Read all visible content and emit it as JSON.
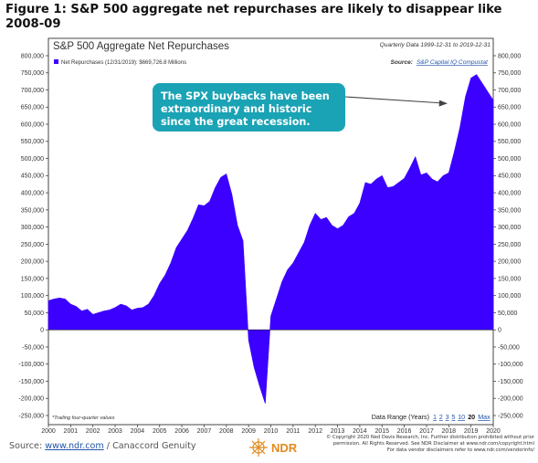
{
  "figure_title": "Figure 1: S&P 500 aggregate net repurchases are likely to disappear like 2008-09",
  "colors": {
    "fill": "#3b00ff",
    "callout": "#1aa3b5",
    "frame": "#444444",
    "link": "#2255aa"
  },
  "source": {
    "label": "Source:",
    "link": "www.ndr.com",
    "rest": "/ Canaccord Genuity"
  },
  "copyright_lines": [
    "© Copyright 2020 Ned Davis Research, Inc. Further distribution prohibited without prior",
    "permission. All Rights Reserved. See NDR Disclaimer at www.ndr.com/copyright.html",
    "For data vendor disclaimers refer to www.ndr.com/vendorinfo/"
  ],
  "logo_text": "NDR",
  "chart_data": {
    "type": "area",
    "title": "S&P 500 Aggregate Net Repurchases",
    "subtitle_right": "Quarterly Data 1999-12-31 to 2019-12-31",
    "legend": "Net Repurchases (12/31/2019): $669,726.8 Millions",
    "source_label": "Source:",
    "source_value": "S&P Capital IQ Compustat",
    "note": "*Trailing four-quarter values",
    "data_range_label": "Data Range (Years)",
    "data_range_options": [
      "1",
      "2",
      "3",
      "5",
      "10",
      "20",
      "Max"
    ],
    "data_range_selected": "20",
    "annotation": "The SPX buybacks have been extraordinary and historic since the great recession.",
    "ylim": [
      -250000,
      800000
    ],
    "y_ticks": [
      800000,
      750000,
      700000,
      650000,
      600000,
      550000,
      500000,
      450000,
      400000,
      350000,
      300000,
      250000,
      200000,
      150000,
      100000,
      50000,
      0,
      -50000,
      -100000,
      -150000,
      -200000,
      -250000
    ],
    "y_tick_labels": [
      "800,000",
      "750,000",
      "700,000",
      "650,000",
      "600,000",
      "550,000",
      "500,000",
      "450,000",
      "400,000",
      "350,000",
      "300,000",
      "250,000",
      "200,000",
      "150,000",
      "100,000",
      "50,000",
      "0",
      "-50,000",
      "-100,000",
      "-150,000",
      "-200,000",
      "-250,000"
    ],
    "xlim": [
      2000,
      2020
    ],
    "x_ticks": [
      "2000",
      "2001",
      "2002",
      "2003",
      "2004",
      "2005",
      "2006",
      "2007",
      "2008",
      "2009",
      "2010",
      "2011",
      "2012",
      "2013",
      "2014",
      "2015",
      "2016",
      "2017",
      "2018",
      "2019",
      "2020"
    ],
    "series": [
      {
        "x": [
          2000.0,
          2000.25,
          2000.5,
          2000.75,
          2001.0,
          2001.25,
          2001.5,
          2001.75,
          2002.0,
          2002.25,
          2002.5,
          2002.75,
          2003.0,
          2003.25,
          2003.5,
          2003.75,
          2004.0,
          2004.25,
          2004.5,
          2004.75,
          2005.0,
          2005.25,
          2005.5,
          2005.75,
          2006.0,
          2006.25,
          2006.5,
          2006.75,
          2007.0,
          2007.25,
          2007.5,
          2007.75,
          2008.0,
          2008.25,
          2008.5,
          2008.75,
          2009.0,
          2009.25,
          2009.5,
          2009.75,
          2010.0,
          2010.25,
          2010.5,
          2010.75,
          2011.0,
          2011.25,
          2011.5,
          2011.75,
          2012.0,
          2012.25,
          2012.5,
          2012.75,
          2013.0,
          2013.25,
          2013.5,
          2013.75,
          2014.0,
          2014.25,
          2014.5,
          2014.75,
          2015.0,
          2015.25,
          2015.5,
          2015.75,
          2016.0,
          2016.25,
          2016.5,
          2016.75,
          2017.0,
          2017.25,
          2017.5,
          2017.75,
          2018.0,
          2018.25,
          2018.5,
          2018.75,
          2019.0,
          2019.25,
          2019.5,
          2019.75,
          2020.0
        ],
        "values": [
          85000,
          90000,
          93000,
          90000,
          75000,
          68000,
          55000,
          60000,
          45000,
          50000,
          55000,
          58000,
          65000,
          75000,
          70000,
          58000,
          63000,
          65000,
          75000,
          100000,
          135000,
          160000,
          195000,
          240000,
          265000,
          290000,
          325000,
          365000,
          362000,
          375000,
          415000,
          445000,
          455000,
          395000,
          305000,
          260000,
          -30000,
          -110000,
          -165000,
          -215000,
          40000,
          90000,
          140000,
          175000,
          195000,
          225000,
          255000,
          305000,
          340000,
          322000,
          328000,
          305000,
          295000,
          305000,
          330000,
          340000,
          370000,
          430000,
          425000,
          440000,
          450000,
          415000,
          418000,
          430000,
          442000,
          472000,
          505000,
          452000,
          458000,
          440000,
          432000,
          450000,
          458000,
          520000,
          590000,
          680000,
          735000,
          745000,
          720000,
          695000,
          670000
        ]
      }
    ]
  }
}
